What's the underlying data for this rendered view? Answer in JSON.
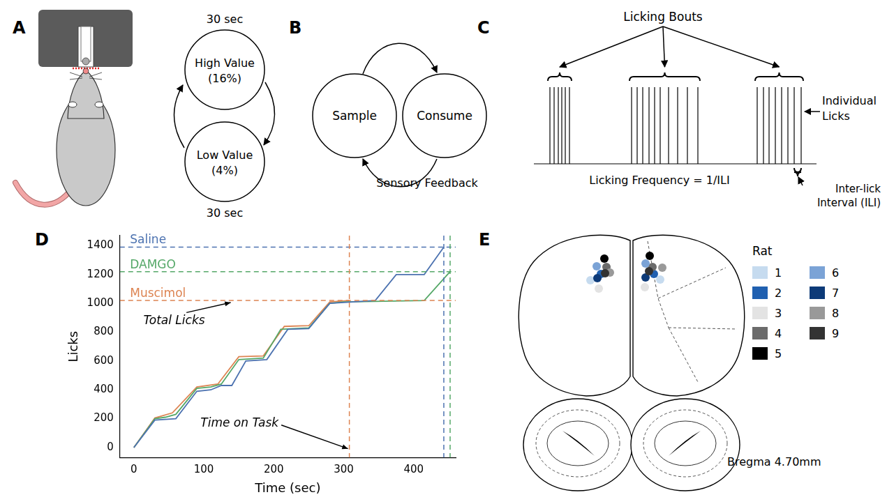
{
  "panels": {
    "A": {
      "letter": "A",
      "states": [
        {
          "label": "High Value",
          "concentration": "(16%)",
          "duration": "30 sec"
        },
        {
          "label": "Low Value",
          "concentration": "(4%)",
          "duration": "30 sec"
        }
      ]
    },
    "B": {
      "letter": "B",
      "nodes": [
        "Sample",
        "Consume"
      ],
      "feedback_label": "Sensory Feedback"
    },
    "C": {
      "letter": "C",
      "bouts_label": "Licking Bouts",
      "licks_label": "Individual Licks",
      "frequency_label": "Licking Frequency = 1/ILI",
      "interval_label": "Inter-lick Interval (ILI)"
    },
    "E": {
      "letter": "E",
      "legend_title": "Rat",
      "section_label": "Bregma 4.70mm",
      "rats": [
        {
          "label": "1",
          "color": "#c6dbef"
        },
        {
          "label": "2",
          "color": "#2060b0"
        },
        {
          "label": "3",
          "color": "#e3e3e3"
        },
        {
          "label": "4",
          "color": "#6b6b6b"
        },
        {
          "label": "5",
          "color": "#000000"
        },
        {
          "label": "6",
          "color": "#7ba3d6"
        },
        {
          "label": "7",
          "color": "#0d3a78"
        },
        {
          "label": "8",
          "color": "#999999"
        },
        {
          "label": "9",
          "color": "#333333"
        }
      ]
    }
  },
  "chart_data": {
    "letter": "D",
    "type": "line",
    "x_label": "Time (sec)",
    "y_label": "Licks",
    "xlim": [
      -20,
      460
    ],
    "xticks": [
      0,
      100,
      200,
      300,
      400
    ],
    "ylim": [
      -70,
      1470
    ],
    "yticks": [
      0,
      200,
      400,
      600,
      800,
      1000,
      1200,
      1400
    ],
    "grid": false,
    "annotations": {
      "total_licks": "Total Licks",
      "time_on_task": "Time on Task"
    },
    "series": [
      {
        "name": "Saline",
        "color": "#4c72b0",
        "total_licks": 1390,
        "time_on_task": 443,
        "x": [
          0,
          30,
          60,
          90,
          110,
          125,
          140,
          160,
          190,
          220,
          250,
          280,
          345,
          375,
          415,
          443
        ],
        "values": [
          0,
          190,
          200,
          390,
          400,
          430,
          430,
          600,
          610,
          820,
          825,
          1000,
          1020,
          1200,
          1200,
          1390
        ]
      },
      {
        "name": "DAMGO",
        "color": "#55a868",
        "total_licks": 1220,
        "time_on_task": 452,
        "x": [
          0,
          30,
          45,
          60,
          90,
          110,
          125,
          150,
          185,
          210,
          250,
          280,
          300,
          415,
          452
        ],
        "values": [
          0,
          200,
          210,
          230,
          410,
          420,
          440,
          610,
          620,
          820,
          830,
          1000,
          1010,
          1020,
          1220
        ]
      },
      {
        "name": "Muscimol",
        "color": "#dd8452",
        "total_licks": 1020,
        "time_on_task": 308,
        "x": [
          0,
          30,
          55,
          90,
          120,
          150,
          185,
          215,
          250,
          280,
          308
        ],
        "values": [
          0,
          205,
          240,
          420,
          440,
          630,
          635,
          840,
          845,
          1010,
          1020
        ]
      }
    ]
  }
}
